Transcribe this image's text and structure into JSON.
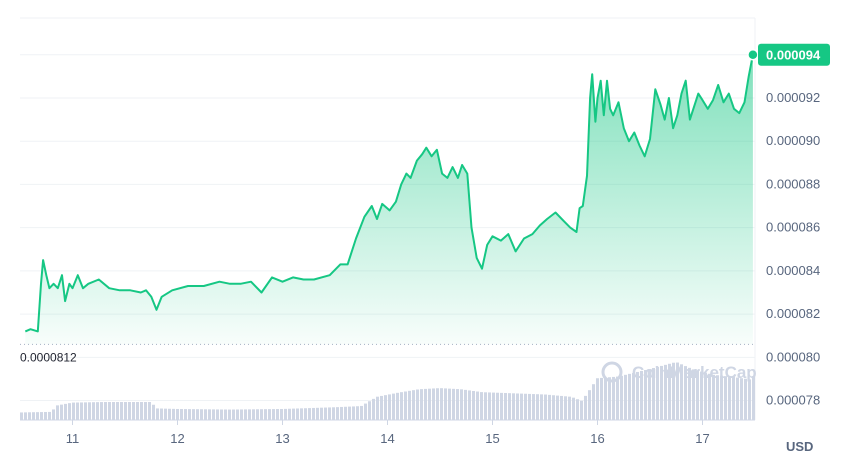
{
  "chart_data": {
    "type": "area",
    "currency": "USD",
    "watermark": "CoinMarketCap",
    "colors": {
      "line": "#16c784",
      "fill_top": "#16c784",
      "volume": "#cfd6e4",
      "grid": "#eff2f5",
      "text": "#58667e"
    },
    "y_axis": {
      "ticks": [
        "0.000078",
        "0.000080",
        "0.000082",
        "0.000084",
        "0.000086",
        "0.000088",
        "0.000090",
        "0.000092"
      ],
      "range": [
        7.71e-05,
        9.57e-05
      ]
    },
    "x_axis": {
      "ticks": [
        "11",
        "12",
        "13",
        "14",
        "15",
        "16",
        "17"
      ],
      "range": [
        10.5,
        17.5
      ]
    },
    "reference_line": {
      "label": "0.0000812",
      "value": 8.12e-05
    },
    "last_price": {
      "label": "0.000094",
      "value": 9.4e-05
    },
    "price_series": [
      [
        10.55,
        8.12e-05
      ],
      [
        10.6,
        8.13e-05
      ],
      [
        10.67,
        8.12e-05
      ],
      [
        10.7,
        8.34e-05
      ],
      [
        10.72,
        8.45e-05
      ],
      [
        10.75,
        8.38e-05
      ],
      [
        10.78,
        8.32e-05
      ],
      [
        10.82,
        8.34e-05
      ],
      [
        10.86,
        8.32e-05
      ],
      [
        10.9,
        8.38e-05
      ],
      [
        10.93,
        8.26e-05
      ],
      [
        10.97,
        8.34e-05
      ],
      [
        11.0,
        8.32e-05
      ],
      [
        11.05,
        8.38e-05
      ],
      [
        11.1,
        8.32e-05
      ],
      [
        11.15,
        8.34e-05
      ],
      [
        11.25,
        8.36e-05
      ],
      [
        11.35,
        8.32e-05
      ],
      [
        11.45,
        8.31e-05
      ],
      [
        11.55,
        8.31e-05
      ],
      [
        11.65,
        8.3e-05
      ],
      [
        11.7,
        8.31e-05
      ],
      [
        11.75,
        8.28e-05
      ],
      [
        11.8,
        8.22e-05
      ],
      [
        11.85,
        8.28e-05
      ],
      [
        11.95,
        8.31e-05
      ],
      [
        12.1,
        8.33e-05
      ],
      [
        12.25,
        8.33e-05
      ],
      [
        12.4,
        8.35e-05
      ],
      [
        12.5,
        8.34e-05
      ],
      [
        12.6,
        8.34e-05
      ],
      [
        12.7,
        8.35e-05
      ],
      [
        12.8,
        8.3e-05
      ],
      [
        12.9,
        8.37e-05
      ],
      [
        13.0,
        8.35e-05
      ],
      [
        13.1,
        8.37e-05
      ],
      [
        13.2,
        8.36e-05
      ],
      [
        13.3,
        8.36e-05
      ],
      [
        13.45,
        8.38e-05
      ],
      [
        13.55,
        8.43e-05
      ],
      [
        13.62,
        8.43e-05
      ],
      [
        13.7,
        8.55e-05
      ],
      [
        13.78,
        8.65e-05
      ],
      [
        13.85,
        8.7e-05
      ],
      [
        13.9,
        8.64e-05
      ],
      [
        13.95,
        8.71e-05
      ],
      [
        14.02,
        8.68e-05
      ],
      [
        14.08,
        8.72e-05
      ],
      [
        14.13,
        8.8e-05
      ],
      [
        14.18,
        8.85e-05
      ],
      [
        14.22,
        8.83e-05
      ],
      [
        14.28,
        8.91e-05
      ],
      [
        14.33,
        8.94e-05
      ],
      [
        14.37,
        8.97e-05
      ],
      [
        14.42,
        8.93e-05
      ],
      [
        14.47,
        8.96e-05
      ],
      [
        14.52,
        8.85e-05
      ],
      [
        14.57,
        8.83e-05
      ],
      [
        14.62,
        8.88e-05
      ],
      [
        14.67,
        8.83e-05
      ],
      [
        14.71,
        8.89e-05
      ],
      [
        14.76,
        8.85e-05
      ],
      [
        14.8,
        8.6e-05
      ],
      [
        14.85,
        8.46e-05
      ],
      [
        14.9,
        8.41e-05
      ],
      [
        14.95,
        8.52e-05
      ],
      [
        15.0,
        8.56e-05
      ],
      [
        15.08,
        8.54e-05
      ],
      [
        15.15,
        8.57e-05
      ],
      [
        15.22,
        8.49e-05
      ],
      [
        15.3,
        8.55e-05
      ],
      [
        15.38,
        8.57e-05
      ],
      [
        15.45,
        8.61e-05
      ],
      [
        15.52,
        8.64e-05
      ],
      [
        15.6,
        8.67e-05
      ],
      [
        15.68,
        8.63e-05
      ],
      [
        15.74,
        8.6e-05
      ],
      [
        15.8,
        8.58e-05
      ],
      [
        15.83,
        8.69e-05
      ],
      [
        15.86,
        8.7e-05
      ],
      [
        15.88,
        8.77e-05
      ],
      [
        15.9,
        8.84e-05
      ],
      [
        15.93,
        9.2e-05
      ],
      [
        15.95,
        9.31e-05
      ],
      [
        15.98,
        9.09e-05
      ],
      [
        16.0,
        9.2e-05
      ],
      [
        16.03,
        9.28e-05
      ],
      [
        16.06,
        9.12e-05
      ],
      [
        16.09,
        9.28e-05
      ],
      [
        16.12,
        9.15e-05
      ],
      [
        16.15,
        9.12e-05
      ],
      [
        16.2,
        9.18e-05
      ],
      [
        16.25,
        9.06e-05
      ],
      [
        16.3,
        9e-05
      ],
      [
        16.35,
        9.04e-05
      ],
      [
        16.4,
        8.98e-05
      ],
      [
        16.45,
        8.93e-05
      ],
      [
        16.5,
        9.01e-05
      ],
      [
        16.55,
        9.24e-05
      ],
      [
        16.6,
        9.17e-05
      ],
      [
        16.64,
        9.1e-05
      ],
      [
        16.68,
        9.2e-05
      ],
      [
        16.72,
        9.06e-05
      ],
      [
        16.76,
        9.12e-05
      ],
      [
        16.8,
        9.22e-05
      ],
      [
        16.84,
        9.28e-05
      ],
      [
        16.88,
        9.1e-05
      ],
      [
        16.92,
        9.16e-05
      ],
      [
        16.96,
        9.22e-05
      ],
      [
        17.0,
        9.19e-05
      ],
      [
        17.05,
        9.15e-05
      ],
      [
        17.1,
        9.19e-05
      ],
      [
        17.15,
        9.26e-05
      ],
      [
        17.2,
        9.18e-05
      ],
      [
        17.25,
        9.22e-05
      ],
      [
        17.3,
        9.15e-05
      ],
      [
        17.35,
        9.13e-05
      ],
      [
        17.4,
        9.18e-05
      ],
      [
        17.44,
        9.3e-05
      ],
      [
        17.48,
        9.4e-05
      ]
    ],
    "volume_series": [
      [
        10.5,
        0.13
      ],
      [
        10.8,
        0.14
      ],
      [
        10.85,
        0.25
      ],
      [
        11.0,
        0.3
      ],
      [
        11.3,
        0.31
      ],
      [
        11.5,
        0.31
      ],
      [
        11.75,
        0.31
      ],
      [
        11.8,
        0.2
      ],
      [
        12.0,
        0.19
      ],
      [
        12.5,
        0.18
      ],
      [
        13.0,
        0.19
      ],
      [
        13.5,
        0.22
      ],
      [
        13.75,
        0.24
      ],
      [
        13.9,
        0.4
      ],
      [
        14.1,
        0.47
      ],
      [
        14.3,
        0.53
      ],
      [
        14.5,
        0.55
      ],
      [
        14.7,
        0.53
      ],
      [
        14.9,
        0.48
      ],
      [
        15.2,
        0.46
      ],
      [
        15.5,
        0.44
      ],
      [
        15.75,
        0.4
      ],
      [
        15.85,
        0.33
      ],
      [
        15.9,
        0.45
      ],
      [
        16.0,
        0.72
      ],
      [
        16.2,
        0.75
      ],
      [
        16.5,
        0.88
      ],
      [
        16.75,
        1.0
      ],
      [
        16.9,
        0.88
      ],
      [
        17.1,
        0.78
      ],
      [
        17.3,
        0.74
      ],
      [
        17.45,
        0.7
      ],
      [
        17.5,
        0.78
      ]
    ]
  }
}
